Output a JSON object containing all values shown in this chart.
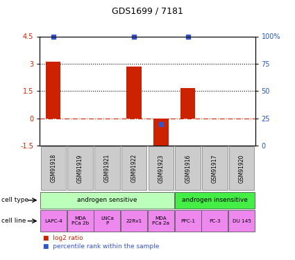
{
  "title": "GDS1699 / 7181",
  "samples": [
    "GSM91918",
    "GSM91919",
    "GSM91921",
    "GSM91922",
    "GSM91923",
    "GSM91916",
    "GSM91917",
    "GSM91920"
  ],
  "log2_ratio": [
    3.1,
    0.0,
    0.0,
    2.85,
    -1.55,
    1.65,
    0.0,
    0.0
  ],
  "percentile_rank": [
    100,
    0,
    0,
    100,
    20,
    100,
    0,
    0
  ],
  "percentile_show": [
    true,
    false,
    false,
    true,
    true,
    true,
    false,
    false
  ],
  "ylim": [
    -1.5,
    4.5
  ],
  "yticks_left": [
    -1.5,
    0.0,
    1.5,
    3.0,
    4.5
  ],
  "left_tick_labels": [
    "-1.5",
    "0",
    "1.5",
    "3",
    "4.5"
  ],
  "right_tick_labels": [
    "0",
    "25",
    "50",
    "75",
    "100%"
  ],
  "bar_color": "#cc2200",
  "blue_color": "#3355cc",
  "dotted_line_y": [
    1.5,
    3.0
  ],
  "dashed_line_y": 0.0,
  "cell_type_groups": [
    {
      "label": "androgen sensitive",
      "start": 0,
      "end": 5,
      "color": "#bbffbb"
    },
    {
      "label": "androgen insensitive",
      "start": 5,
      "end": 8,
      "color": "#44ee44"
    }
  ],
  "cell_lines": [
    "LAPC-4",
    "MDA\nPCa 2b",
    "LNCa\nP",
    "22Rv1",
    "MDA\nPCa 2a",
    "PPC-1",
    "PC-3",
    "DU 145"
  ],
  "cell_line_color": "#ee88ee",
  "sample_box_color": "#cccccc",
  "legend_red_label": "log2 ratio",
  "legend_blue_label": "percentile rank within the sample",
  "left_label_color": "#cc2200",
  "right_label_color": "#2255cc"
}
